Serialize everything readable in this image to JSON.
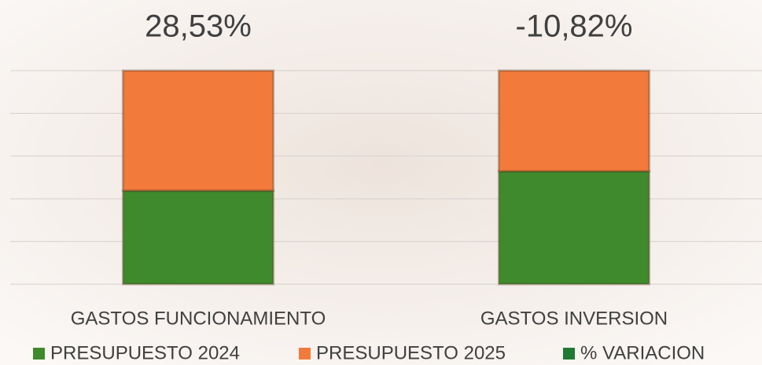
{
  "chart_data": {
    "type": "stacked_bar_percent",
    "categories": [
      "GASTOS FUNCIONAMIENTO",
      "GASTOS INVERSION"
    ],
    "series": [
      {
        "name": "PRESUPUESTO 2024",
        "color": "#3e8a2c",
        "values": [
          43.8,
          52.9
        ]
      },
      {
        "name": "PRESUPUESTO 2025",
        "color": "#f27b3b",
        "values": [
          56.2,
          47.1
        ]
      },
      {
        "name": "% VARIACION",
        "color": "#1f7a32",
        "values": [
          28.53,
          -10.82
        ],
        "value_labels": [
          "28,53%",
          "-10,82%"
        ]
      }
    ],
    "ylim": [
      0,
      100
    ],
    "yticks": [
      0,
      20,
      40,
      60,
      80,
      100
    ],
    "grid": true
  }
}
